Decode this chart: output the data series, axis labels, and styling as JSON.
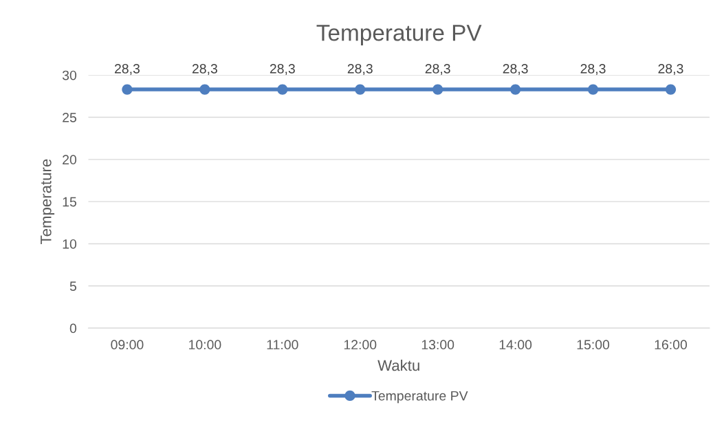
{
  "chart_data": {
    "type": "line",
    "title": "Temperature PV",
    "xlabel": "Waktu",
    "ylabel": "Temperature",
    "categories": [
      "09:00",
      "10:00",
      "11:00",
      "12:00",
      "13:00",
      "14:00",
      "15:00",
      "16:00"
    ],
    "series": [
      {
        "name": "Temperature PV",
        "color": "#4e7ebf",
        "values": [
          28.3,
          28.3,
          28.3,
          28.3,
          28.3,
          28.3,
          28.3,
          28.3
        ],
        "value_labels": [
          "28,3",
          "28,3",
          "28,3",
          "28,3",
          "28,3",
          "28,3",
          "28,3",
          "28,3"
        ]
      }
    ],
    "ylim": [
      0,
      30
    ],
    "yticks": [
      0,
      5,
      10,
      15,
      20,
      25,
      30
    ],
    "grid": "y",
    "legend": "bottom",
    "marker": "circle",
    "line_style": "solid"
  }
}
